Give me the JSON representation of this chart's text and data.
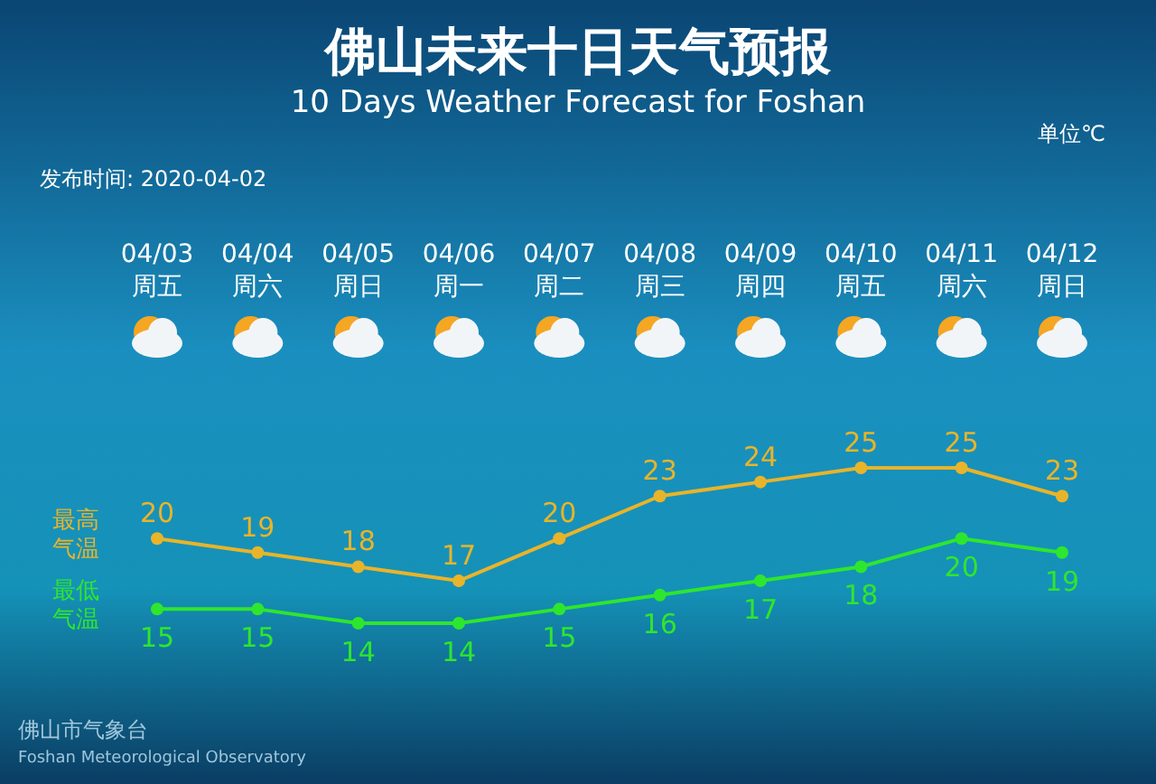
{
  "chart_data": {
    "type": "line",
    "title": "佛山未来十日天气预报",
    "subtitle": "10 Days Weather Forecast for Foshan",
    "categories": [
      "04/03\n周五",
      "04/04\n周六",
      "04/05\n周日",
      "04/06\n周一",
      "04/07\n周二",
      "04/08\n周三",
      "04/09\n周四",
      "04/10\n周五",
      "04/11\n周六",
      "04/12\n周日"
    ],
    "series": [
      {
        "name": "最高气温",
        "color": "#e8b42a",
        "values": [
          20,
          19,
          18,
          17,
          20,
          23,
          24,
          25,
          25,
          23
        ]
      },
      {
        "name": "最低气温",
        "color": "#2ee62e",
        "values": [
          15,
          15,
          14,
          14,
          15,
          16,
          17,
          18,
          20,
          19
        ]
      }
    ],
    "data_labels": true,
    "marker": "circle",
    "line_style": "solid",
    "annotations": [
      "单位℃",
      "发布时间: 2020-04-02",
      "佛山市气象台",
      "Foshan Meteorological Observatory"
    ]
  }
}
